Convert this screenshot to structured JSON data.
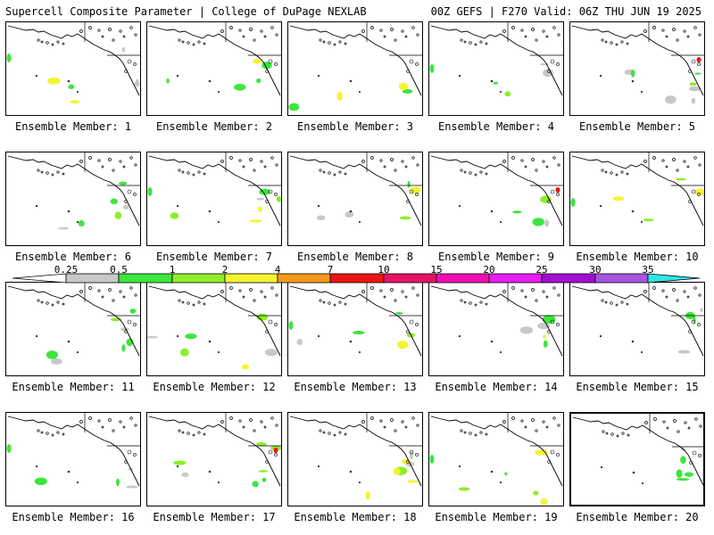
{
  "header": {
    "left": "Supercell Composite Parameter | College of DuPage NEXLAB",
    "right": "00Z GEFS | F270 Valid: 06Z THU JUN 19 2025"
  },
  "colorbar": {
    "labels": [
      "0.25",
      "0.5",
      "1",
      "2",
      "4",
      "7",
      "10",
      "15",
      "20",
      "25",
      "30",
      "35"
    ],
    "colors": [
      "#c8c8c8",
      "#3ce63c",
      "#8cee2a",
      "#f4f430",
      "#f59a1a",
      "#ea1414",
      "#e41464",
      "#f00fb4",
      "#e81ef0",
      "#a00fd2",
      "#a855e0",
      "#30e6e6"
    ]
  },
  "members": [
    {
      "label": "Ensemble Member: 1"
    },
    {
      "label": "Ensemble Member: 2"
    },
    {
      "label": "Ensemble Member: 3"
    },
    {
      "label": "Ensemble Member: 4"
    },
    {
      "label": "Ensemble Member: 5"
    },
    {
      "label": "Ensemble Member: 6"
    },
    {
      "label": "Ensemble Member: 7"
    },
    {
      "label": "Ensemble Member: 8"
    },
    {
      "label": "Ensemble Member: 9"
    },
    {
      "label": "Ensemble Member: 10"
    },
    {
      "label": "Ensemble Member: 11"
    },
    {
      "label": "Ensemble Member: 12"
    },
    {
      "label": "Ensemble Member: 13"
    },
    {
      "label": "Ensemble Member: 14"
    },
    {
      "label": "Ensemble Member: 15"
    },
    {
      "label": "Ensemble Member: 16"
    },
    {
      "label": "Ensemble Member: 17"
    },
    {
      "label": "Ensemble Member: 18"
    },
    {
      "label": "Ensemble Member: 19"
    },
    {
      "label": "Ensemble Member: 20"
    }
  ]
}
